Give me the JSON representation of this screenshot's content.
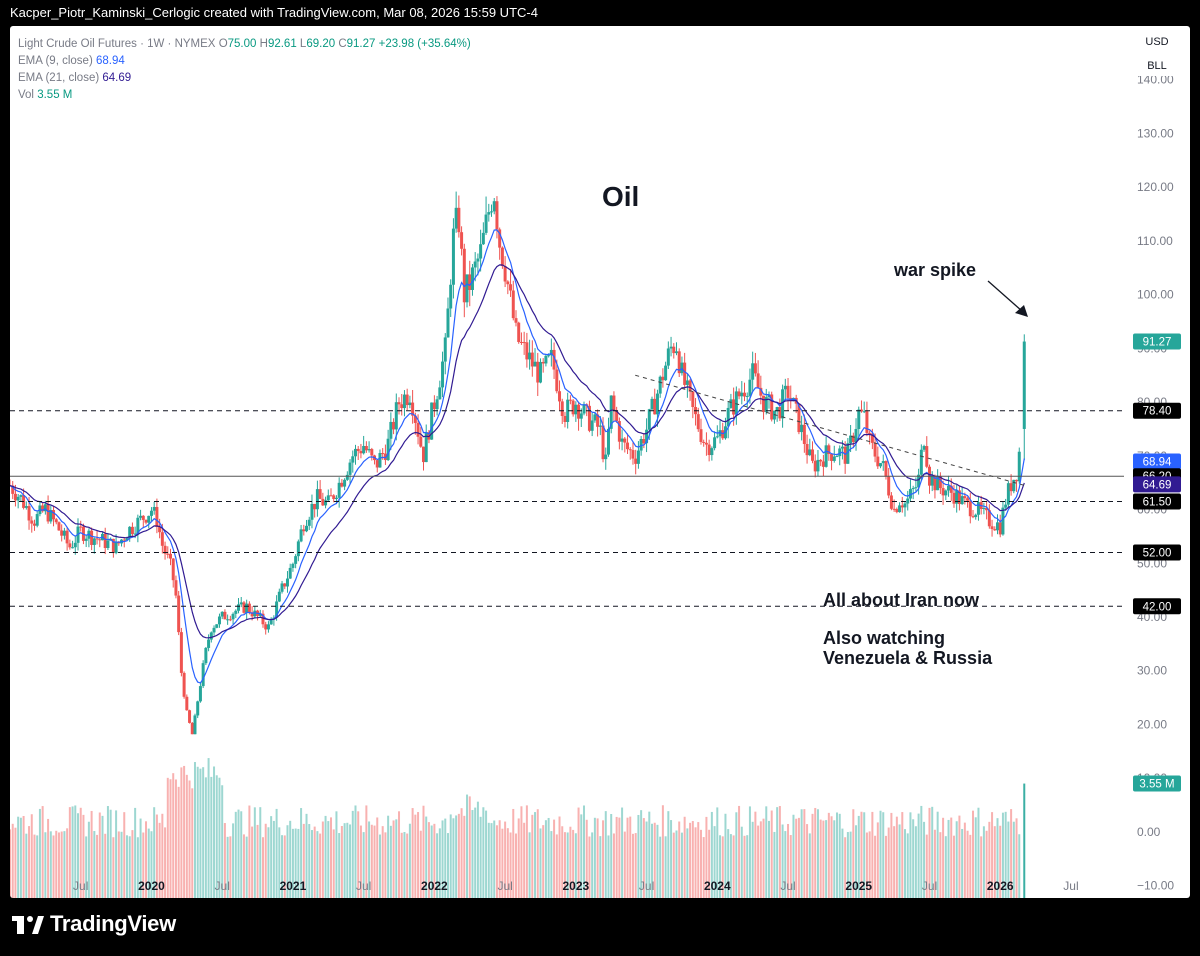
{
  "header": {
    "credit": "Kacper_Piotr_Kaminski_Cerlogic created with TradingView.com, Mar 08, 2026 15:59 UTC-4"
  },
  "legend": {
    "symbol": "Light Crude Oil Futures · 1W · NYMEX",
    "o_label": "O",
    "o": "75.00",
    "h_label": "H",
    "h": "92.61",
    "l_label": "L",
    "l": "69.20",
    "c_label": "C",
    "c": "91.27",
    "change": "+23.98 (+35.64%)",
    "ema9_label": "EMA (9, close)",
    "ema9": "68.94",
    "ema21_label": "EMA (21, close)",
    "ema21": "64.69",
    "vol_label": "Vol",
    "vol": "3.55 M"
  },
  "buttons": {
    "currency": "USD",
    "unit": "BLL"
  },
  "branding": {
    "name": "TradingView"
  },
  "colors": {
    "up": "#26a69a",
    "down": "#ef5350",
    "ema9": "#2962ff",
    "ema21": "#311b92",
    "grid_line": "#131722",
    "text": "#131722",
    "axis_text": "#787b86"
  },
  "chart_data": {
    "type": "candlestick",
    "title": "Oil",
    "annotations": [
      "war spike",
      "All about Iran now",
      "Also watching",
      "Venezuela & Russia"
    ],
    "y_ticks": [
      "140.00",
      "130.00",
      "120.00",
      "110.00",
      "100.00",
      "90.00",
      "80.00",
      "70.00",
      "60.00",
      "50.00",
      "40.00",
      "30.00",
      "20.00",
      "10.00",
      "0.00",
      "−10.00"
    ],
    "y_tick_values": [
      140,
      130,
      120,
      110,
      100,
      90,
      80,
      70,
      60,
      50,
      40,
      30,
      20,
      10,
      0,
      -10
    ],
    "x_ticks": [
      "Jul",
      "2020",
      "Jul",
      "2021",
      "Jul",
      "2022",
      "Jul",
      "2023",
      "Jul",
      "2024",
      "Jul",
      "2025",
      "Jul",
      "2026",
      "Jul"
    ],
    "x_tick_dates": [
      2019.5,
      2020.0,
      2020.5,
      2021.0,
      2021.5,
      2022.0,
      2022.5,
      2023.0,
      2023.5,
      2024.0,
      2024.5,
      2025.0,
      2025.5,
      2026.0,
      2026.5
    ],
    "x_range": [
      2019.0,
      2026.67
    ],
    "y_range": [
      -12.3,
      150.0
    ],
    "horizontal_levels": [
      {
        "value": 78.4,
        "label": "78.40",
        "style": "dashed"
      },
      {
        "value": 66.2,
        "label": "66.20",
        "style": "solid"
      },
      {
        "value": 61.5,
        "label": "61.50",
        "style": "dashed"
      },
      {
        "value": 52.0,
        "label": "52.00",
        "style": "dashed"
      },
      {
        "value": 42.0,
        "label": "42.00",
        "style": "dashed"
      }
    ],
    "trendline": {
      "from": [
        2023.42,
        85.0
      ],
      "to": [
        2026.17,
        64.5
      ],
      "style": "dashed"
    },
    "price_badges": [
      {
        "label": "91.27",
        "value": 91.27,
        "color": "#26a69a"
      },
      {
        "label": "78.40",
        "value": 78.4,
        "color": "#000000"
      },
      {
        "label": "68.94",
        "value": 68.94,
        "color": "#2962ff"
      },
      {
        "label": "66.20",
        "value": 66.2,
        "color": "#000000"
      },
      {
        "label": "64.69",
        "value": 64.69,
        "color": "#311b92"
      },
      {
        "label": "61.50",
        "value": 61.5,
        "color": "#000000"
      },
      {
        "label": "52.00",
        "value": 52.0,
        "color": "#000000"
      },
      {
        "label": "42.00",
        "value": 42.0,
        "color": "#000000"
      },
      {
        "label": "3.55 M",
        "value": 9.0,
        "color": "#26a69a"
      }
    ],
    "close_series": [
      [
        2019.0,
        64.5
      ],
      [
        2019.08,
        62
      ],
      [
        2019.17,
        58
      ],
      [
        2019.25,
        60
      ],
      [
        2019.33,
        57
      ],
      [
        2019.42,
        53
      ],
      [
        2019.5,
        56
      ],
      [
        2019.58,
        55
      ],
      [
        2019.67,
        54
      ],
      [
        2019.75,
        53
      ],
      [
        2019.83,
        56
      ],
      [
        2019.92,
        58
      ],
      [
        2020.0,
        60
      ],
      [
        2020.04,
        58
      ],
      [
        2020.08,
        53
      ],
      [
        2020.13,
        50
      ],
      [
        2020.17,
        45
      ],
      [
        2020.21,
        30
      ],
      [
        2020.25,
        22
      ],
      [
        2020.29,
        18
      ],
      [
        2020.33,
        25
      ],
      [
        2020.38,
        33
      ],
      [
        2020.42,
        38
      ],
      [
        2020.5,
        40
      ],
      [
        2020.58,
        41
      ],
      [
        2020.67,
        42
      ],
      [
        2020.75,
        40
      ],
      [
        2020.83,
        38
      ],
      [
        2020.92,
        45
      ],
      [
        2021.0,
        50
      ],
      [
        2021.08,
        58
      ],
      [
        2021.17,
        62
      ],
      [
        2021.25,
        61
      ],
      [
        2021.33,
        65
      ],
      [
        2021.42,
        70
      ],
      [
        2021.5,
        72
      ],
      [
        2021.58,
        68
      ],
      [
        2021.67,
        72
      ],
      [
        2021.75,
        80
      ],
      [
        2021.83,
        82
      ],
      [
        2021.92,
        70
      ],
      [
        2022.0,
        80
      ],
      [
        2022.08,
        90
      ],
      [
        2022.13,
        110
      ],
      [
        2022.17,
        115
      ],
      [
        2022.21,
        100
      ],
      [
        2022.25,
        102
      ],
      [
        2022.33,
        108
      ],
      [
        2022.38,
        115
      ],
      [
        2022.42,
        120
      ],
      [
        2022.46,
        110
      ],
      [
        2022.5,
        105
      ],
      [
        2022.58,
        92
      ],
      [
        2022.67,
        88
      ],
      [
        2022.75,
        85
      ],
      [
        2022.83,
        88
      ],
      [
        2022.92,
        78
      ],
      [
        2023.0,
        80
      ],
      [
        2023.08,
        77
      ],
      [
        2023.17,
        75
      ],
      [
        2023.21,
        68
      ],
      [
        2023.25,
        80
      ],
      [
        2023.33,
        72
      ],
      [
        2023.42,
        70
      ],
      [
        2023.5,
        75
      ],
      [
        2023.58,
        82
      ],
      [
        2023.67,
        90
      ],
      [
        2023.71,
        91
      ],
      [
        2023.75,
        85
      ],
      [
        2023.83,
        78
      ],
      [
        2023.92,
        72
      ],
      [
        2024.0,
        73
      ],
      [
        2024.08,
        78
      ],
      [
        2024.17,
        82
      ],
      [
        2024.25,
        85
      ],
      [
        2024.33,
        80
      ],
      [
        2024.42,
        78
      ],
      [
        2024.5,
        82
      ],
      [
        2024.58,
        76
      ],
      [
        2024.67,
        68
      ],
      [
        2024.75,
        70
      ],
      [
        2024.83,
        71
      ],
      [
        2024.92,
        70
      ],
      [
        2025.0,
        78
      ],
      [
        2025.04,
        77
      ],
      [
        2025.08,
        72
      ],
      [
        2025.17,
        68
      ],
      [
        2025.25,
        60
      ],
      [
        2025.29,
        62
      ],
      [
        2025.33,
        61
      ],
      [
        2025.42,
        65
      ],
      [
        2025.46,
        74
      ],
      [
        2025.5,
        66
      ],
      [
        2025.58,
        64
      ],
      [
        2025.67,
        63
      ],
      [
        2025.75,
        61
      ],
      [
        2025.83,
        60
      ],
      [
        2025.92,
        58
      ],
      [
        2026.0,
        57
      ],
      [
        2026.04,
        62
      ],
      [
        2026.08,
        65
      ],
      [
        2026.13,
        68
      ],
      [
        2026.17,
        91.27
      ]
    ],
    "volume_note": "weekly volume histogram (green/red bars)"
  }
}
